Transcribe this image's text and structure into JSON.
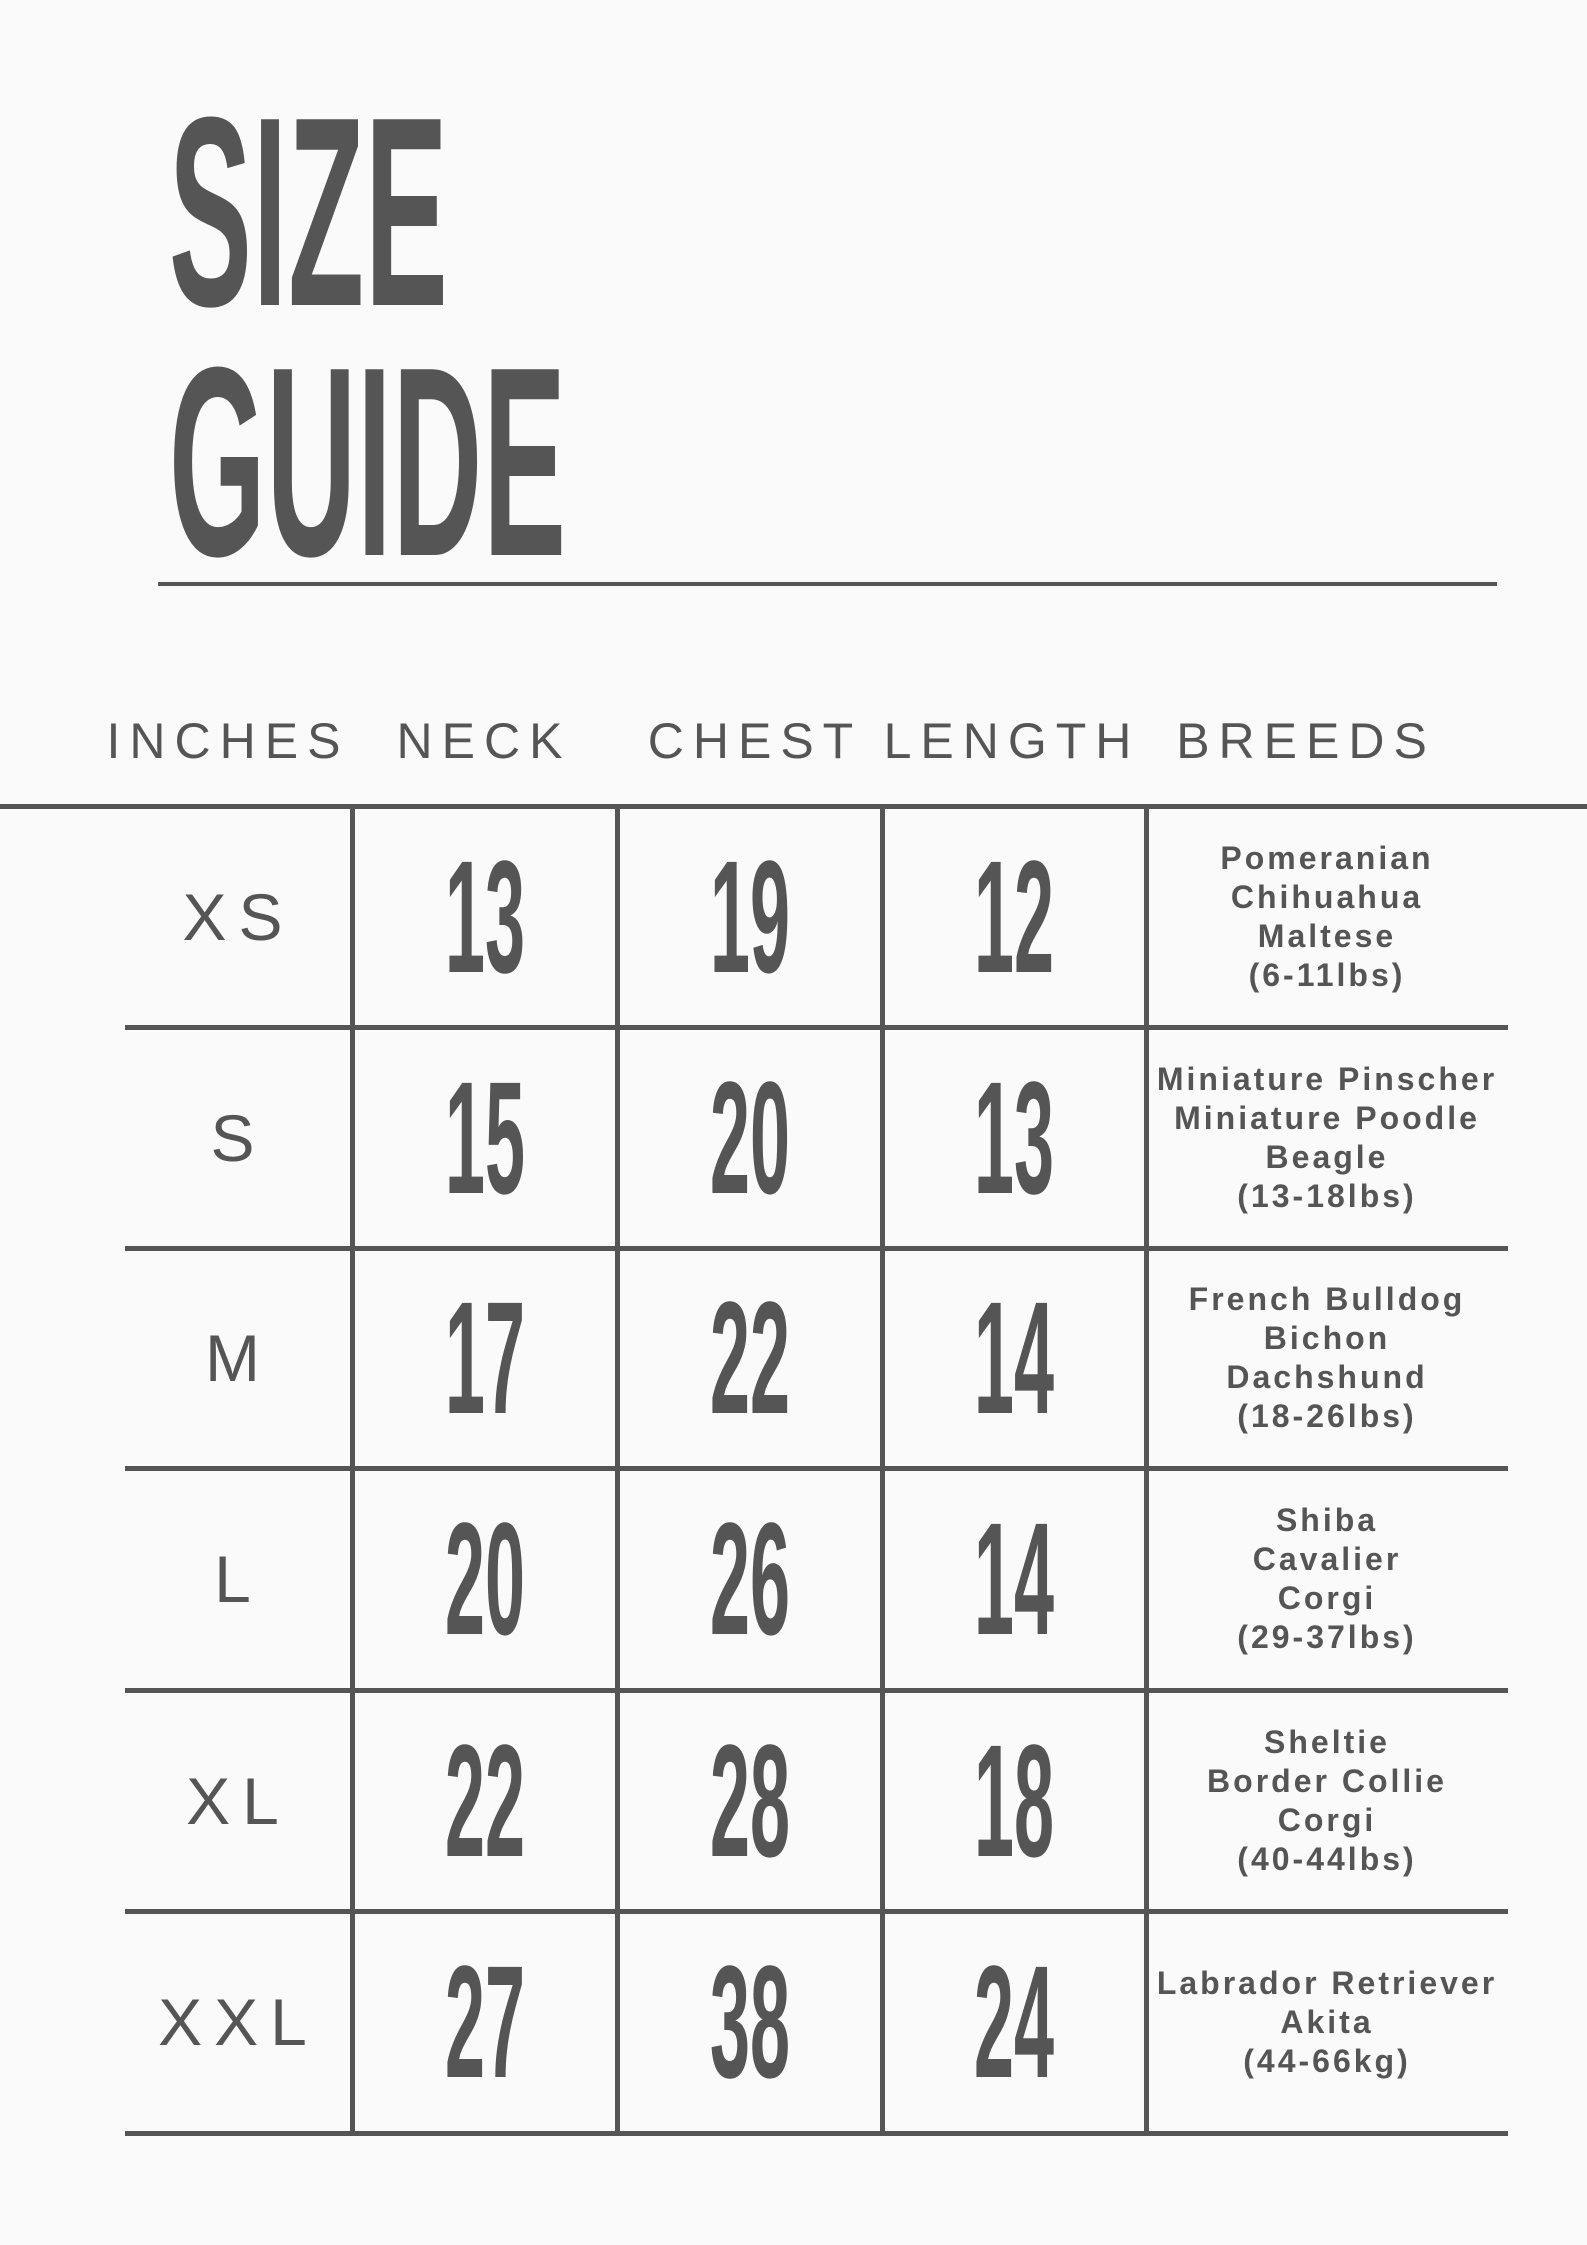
{
  "title": {
    "line1": "SIZE",
    "line2": "GUIDE"
  },
  "headers": [
    "INCHES",
    "NECK",
    "CHEST",
    "LENGTH",
    "BREEDS"
  ],
  "rows": [
    {
      "size": "XS",
      "neck": "13",
      "chest": "19",
      "length": "12",
      "breeds": [
        "Pomeranian",
        "Chihuahua",
        "Maltese",
        "(6-11lbs)"
      ]
    },
    {
      "size": "S",
      "neck": "15",
      "chest": "20",
      "length": "13",
      "breeds": [
        "Miniature Pinscher",
        "Miniature Poodle",
        "Beagle",
        "(13-18lbs)"
      ]
    },
    {
      "size": "M",
      "neck": "17",
      "chest": "22",
      "length": "14",
      "breeds": [
        "French Bulldog",
        "Bichon",
        "Dachshund",
        "(18-26lbs)"
      ]
    },
    {
      "size": "L",
      "neck": "20",
      "chest": "26",
      "length": "14",
      "breeds": [
        "Shiba",
        "Cavalier",
        "Corgi",
        "(29-37lbs)"
      ]
    },
    {
      "size": "XL",
      "neck": "22",
      "chest": "28",
      "length": "18",
      "breeds": [
        "Sheltie",
        "Border Collie",
        "Corgi",
        "(40-44lbs)"
      ]
    },
    {
      "size": "XXL",
      "neck": "27",
      "chest": "38",
      "length": "24",
      "breeds": [
        "Labrador Retriever",
        "Akita",
        "(44-66kg)"
      ]
    }
  ],
  "colors": {
    "background": "#fafafa",
    "ink": "#555555"
  }
}
